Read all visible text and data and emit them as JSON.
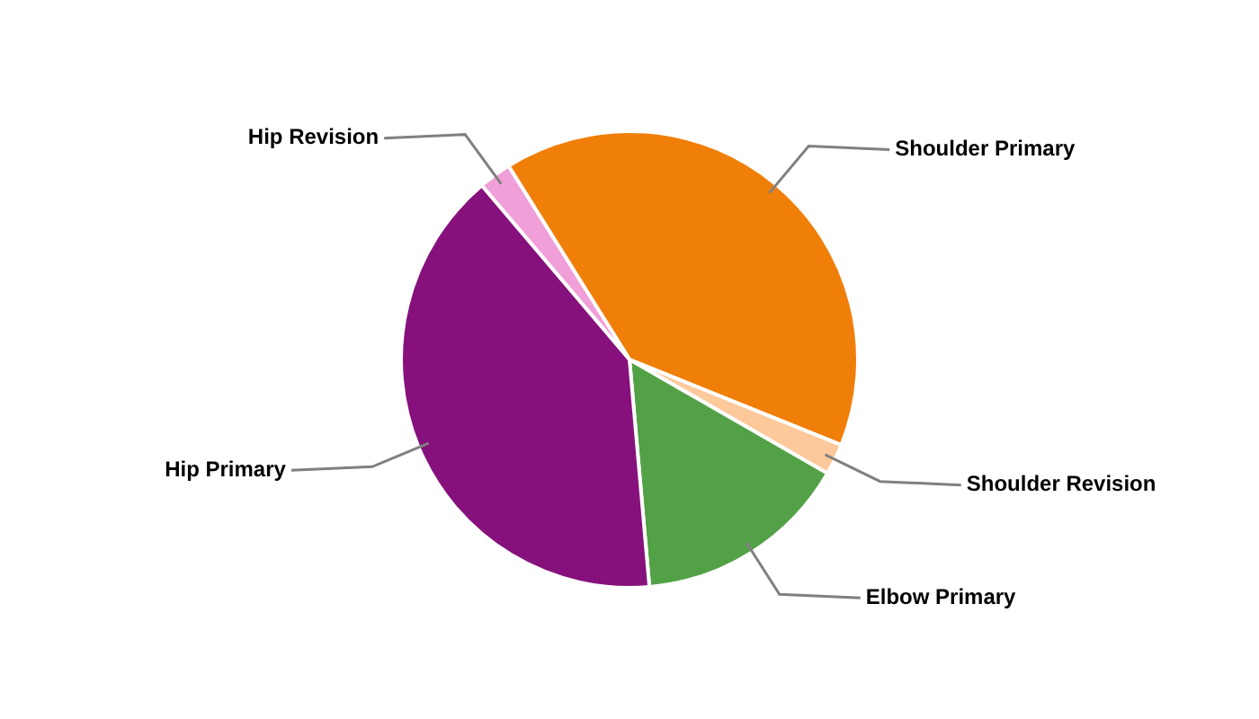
{
  "chart_data": {
    "type": "pie",
    "categories": [
      "Shoulder Primary",
      "Shoulder Revision",
      "Elbow Primary",
      "Hip Primary",
      "Hip Revision"
    ],
    "values": [
      40,
      2.2,
      15.3,
      40.2,
      2.3
    ],
    "colors": [
      "#f07f09",
      "#fdc99b",
      "#53a146",
      "#86117c",
      "#f09fd8"
    ],
    "legend": false
  }
}
